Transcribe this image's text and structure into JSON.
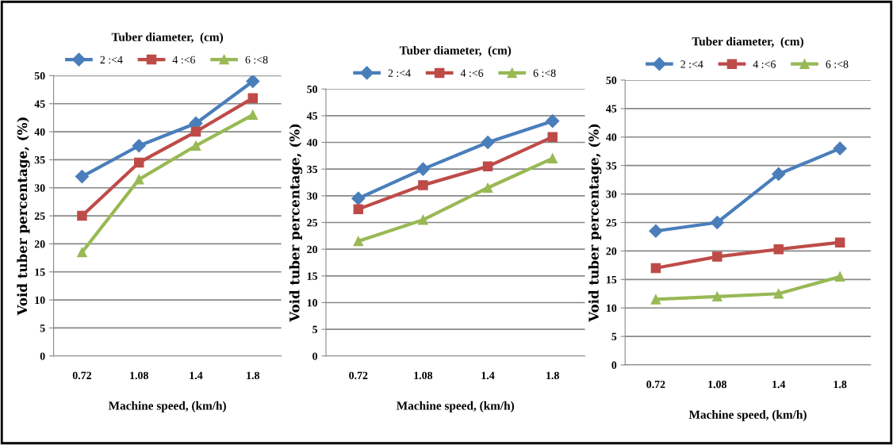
{
  "chart_data": [
    {
      "type": "line",
      "legend_title": "Tuber diameter,  (cm)",
      "xlabel": "Machine speed, (km/h)",
      "ylabel": "Void tuber percentage, (%)",
      "categories": [
        "0.72",
        "1.08",
        "1.4",
        "1.8"
      ],
      "ylim": [
        0,
        50
      ],
      "yticks": [
        0,
        5,
        10,
        15,
        20,
        25,
        30,
        35,
        40,
        45,
        50
      ],
      "grid": "y",
      "legend": "top",
      "series": [
        {
          "name": "2 :<4",
          "color": "#4a7ebb",
          "marker": "diamond",
          "values": [
            32,
            37.5,
            41.5,
            49
          ]
        },
        {
          "name": "4 :<6",
          "color": "#be4b48",
          "marker": "square",
          "values": [
            25,
            34.5,
            40,
            46
          ]
        },
        {
          "name": "6 :<8",
          "color": "#98b954",
          "marker": "triangle",
          "values": [
            18.5,
            31.5,
            37.5,
            43
          ]
        }
      ]
    },
    {
      "type": "line",
      "legend_title": "Tuber diameter,  (cm)",
      "xlabel": "Machine speed, (km/h)",
      "ylabel": "Void tuber percentage, (%)",
      "categories": [
        "0.72",
        "1.08",
        "1.4",
        "1.8"
      ],
      "ylim": [
        0,
        50
      ],
      "yticks": [
        0,
        5,
        10,
        15,
        20,
        25,
        30,
        35,
        40,
        45,
        50
      ],
      "grid": "y",
      "legend": "top",
      "series": [
        {
          "name": "2 :<4",
          "color": "#4a7ebb",
          "marker": "diamond",
          "values": [
            29.5,
            35,
            40,
            44
          ]
        },
        {
          "name": "4 :<6",
          "color": "#be4b48",
          "marker": "square",
          "values": [
            27.5,
            32,
            35.5,
            41
          ]
        },
        {
          "name": "6 :<8",
          "color": "#98b954",
          "marker": "triangle",
          "values": [
            21.5,
            25.5,
            31.5,
            37
          ]
        }
      ]
    },
    {
      "type": "line",
      "legend_title": "Tuber diameter,  (cm)",
      "xlabel": "Machine speed, (km/h)",
      "ylabel": "Void tuber percentage, (%)",
      "categories": [
        "0.72",
        "1.08",
        "1.4",
        "1.8"
      ],
      "ylim": [
        0,
        50
      ],
      "yticks": [
        0,
        5,
        10,
        15,
        20,
        25,
        30,
        35,
        40,
        45,
        50
      ],
      "grid": "y",
      "legend": "top",
      "series": [
        {
          "name": "2 :<4",
          "color": "#4a7ebb",
          "marker": "diamond",
          "values": [
            23.5,
            25,
            33.5,
            38
          ]
        },
        {
          "name": "4 :<6",
          "color": "#be4b48",
          "marker": "square",
          "values": [
            17,
            19,
            20.3,
            21.5
          ]
        },
        {
          "name": "6 :<8",
          "color": "#98b954",
          "marker": "triangle",
          "values": [
            11.5,
            12,
            12.5,
            15.5
          ]
        }
      ]
    }
  ]
}
